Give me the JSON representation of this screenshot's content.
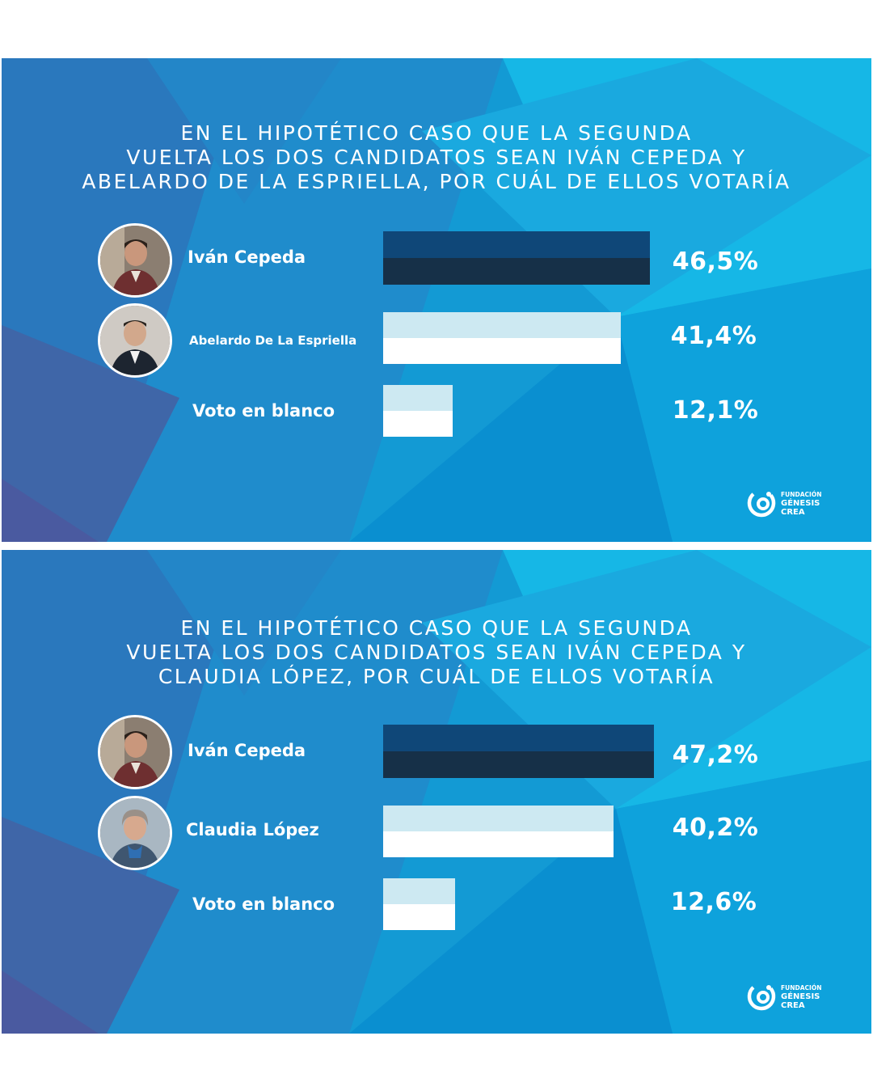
{
  "chart_data": [
    {
      "type": "bar",
      "orientation": "horizontal",
      "title_lines": [
        "EN EL HIPOTÉTICO CASO QUE LA SEGUNDA",
        "VUELTA LOS DOS CANDIDATOS SEAN IVÁN CEPEDA Y",
        "ABELARDO DE LA ESPRIELLA, POR CUÁL DE ELLOS VOTARÍA"
      ],
      "categories": [
        "Iván Cepeda",
        "Abelardo De La Espriella",
        "Voto en blanco"
      ],
      "values": [
        46.5,
        41.4,
        12.1
      ],
      "value_labels": [
        "46,5%",
        "41,4%",
        "12,1%"
      ],
      "unit": "%",
      "xlim": [
        0,
        50
      ],
      "grid": false,
      "legend": "none"
    },
    {
      "type": "bar",
      "orientation": "horizontal",
      "title_lines": [
        "EN EL HIPOTÉTICO CASO QUE LA SEGUNDA",
        "VUELTA LOS DOS CANDIDATOS SEAN IVÁN CEPEDA Y",
        "CLAUDIA LÓPEZ, POR CUÁL DE ELLOS VOTARÍA"
      ],
      "categories": [
        "Iván Cepeda",
        "Claudia López",
        "Voto en blanco"
      ],
      "values": [
        47.2,
        40.2,
        12.6
      ],
      "value_labels": [
        "47,2%",
        "40,2%",
        "12,6%"
      ],
      "unit": "%",
      "xlim": [
        0,
        50
      ],
      "grid": false,
      "legend": "none"
    }
  ],
  "logo": {
    "line1": "FUNDACIÓN",
    "line2": "GÉNESIS",
    "line3": "CREA"
  },
  "colors": {
    "background": "#139ad4",
    "leader_bar_top": "#0f4778",
    "leader_bar_bottom": "#163048",
    "other_bar_top": "#cde9f2",
    "other_bar_bottom": "#ffffff",
    "text": "#ffffff"
  },
  "icons": {
    "avatars": [
      "ivan-cepeda-photo",
      "abelardo-de-la-espriella-photo",
      "claudia-lopez-photo"
    ],
    "logo": "genesis-crea-logo-icon"
  }
}
